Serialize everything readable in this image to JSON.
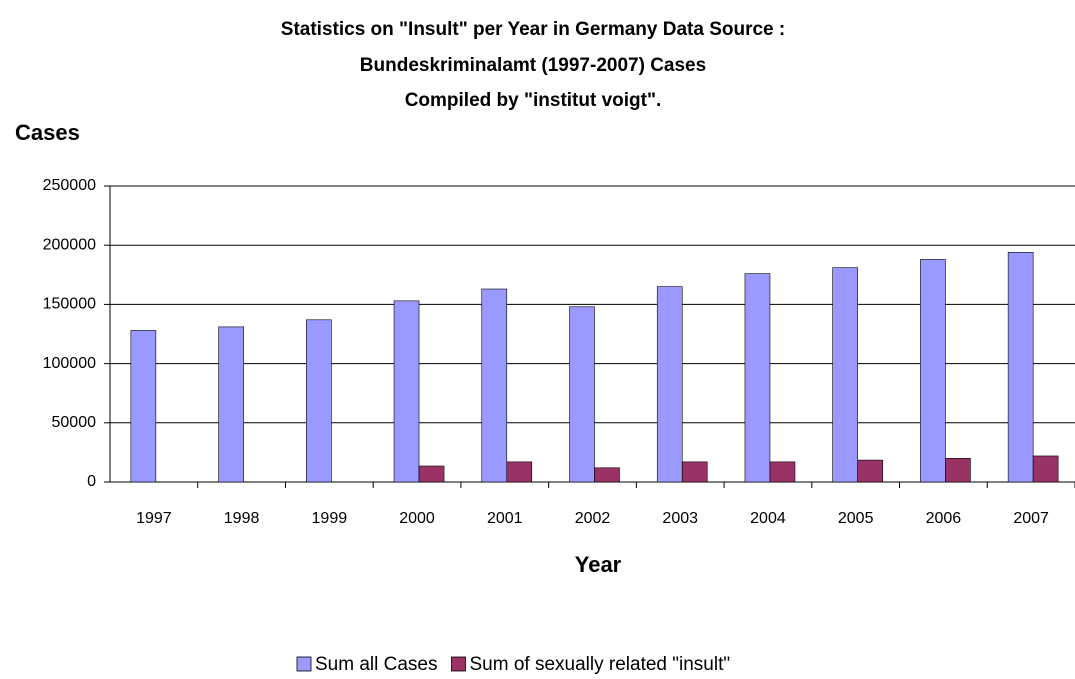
{
  "chart_data": {
    "type": "bar",
    "title": [
      "Statistics on \"Insult\" per Year in Germany Data Source :",
      "Bundeskriminalamt (1997-2007) Cases",
      "Compiled by \"institut voigt\"."
    ],
    "y_label": "Cases",
    "x_label": "Year",
    "categories": [
      "1997",
      "1998",
      "1999",
      "2000",
      "2001",
      "2002",
      "2003",
      "2004",
      "2005",
      "2006",
      "2007"
    ],
    "series": [
      {
        "name": "Sum all Cases",
        "color": "#9999ff",
        "values": [
          128000,
          131000,
          137000,
          153000,
          163000,
          148000,
          165000,
          176000,
          181000,
          188000,
          194000
        ]
      },
      {
        "name": "Sum of sexually related \"insult\"",
        "color": "#993366",
        "values": [
          null,
          null,
          null,
          13500,
          17000,
          12000,
          17000,
          17000,
          18500,
          20000,
          22000
        ]
      }
    ],
    "ylim": [
      0,
      250000
    ],
    "yticks": [
      0,
      50000,
      100000,
      150000,
      200000,
      250000
    ],
    "grid": true,
    "legend": "bottom"
  }
}
